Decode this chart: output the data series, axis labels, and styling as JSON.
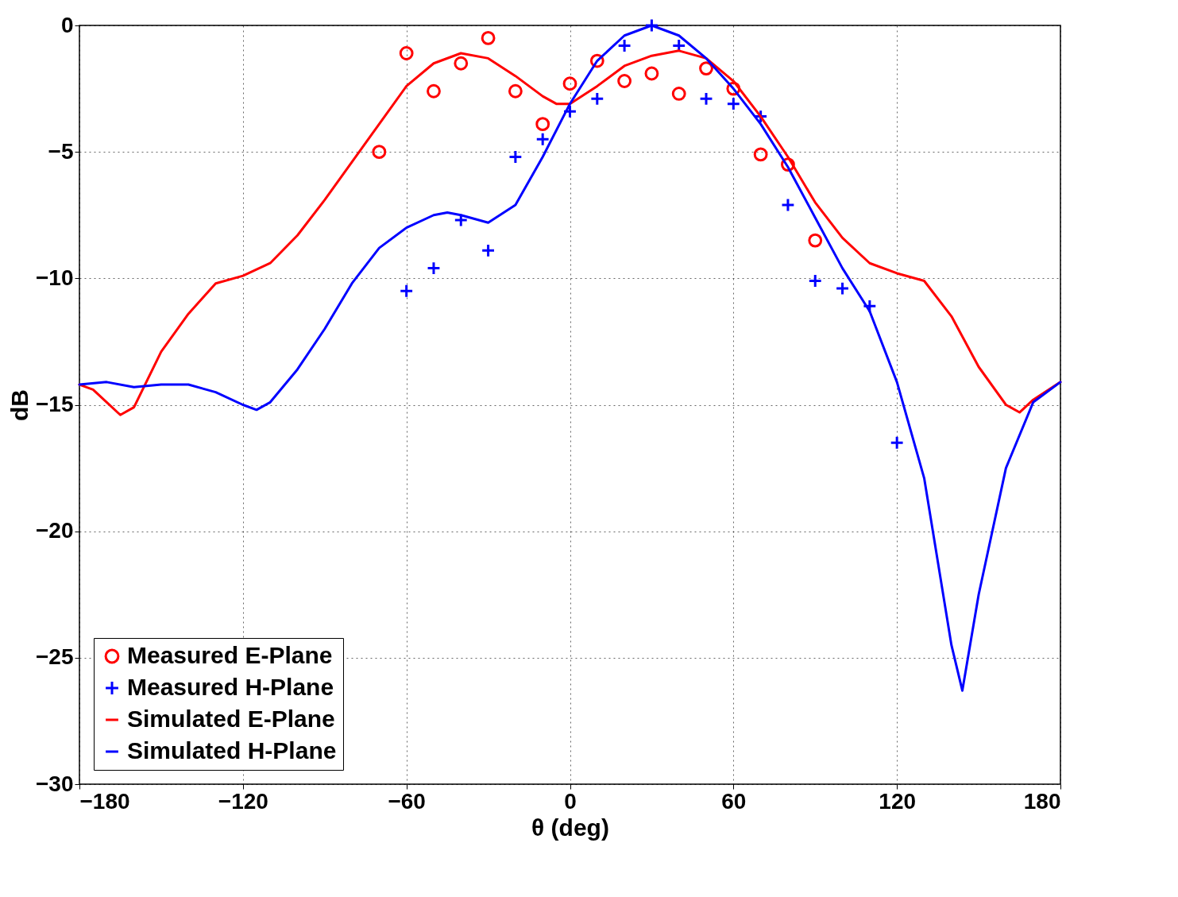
{
  "chart_data": {
    "type": "line",
    "xlabel": "θ (deg)",
    "ylabel": "dB",
    "xlim": [
      -180,
      180
    ],
    "ylim": [
      -30,
      0
    ],
    "xticks": [
      -180,
      -120,
      -60,
      0,
      60,
      120,
      180
    ],
    "yticks": [
      -30,
      -25,
      -20,
      -15,
      -10,
      -5,
      0
    ],
    "grid": true,
    "legend": "bottom left",
    "series": [
      {
        "name": "Measured E-Plane",
        "type": "scatter",
        "marker": "circle",
        "color": "#ff0000",
        "x": [
          -70,
          -60,
          -50,
          -40,
          -30,
          -20,
          -10,
          0,
          10,
          20,
          30,
          40,
          50,
          60,
          70,
          80,
          90
        ],
        "values": [
          -5.0,
          -1.1,
          -2.6,
          -1.5,
          -0.5,
          -2.6,
          -3.9,
          -2.3,
          -1.4,
          -2.2,
          -1.9,
          -2.7,
          -1.7,
          -2.5,
          -5.1,
          -5.5,
          -8.5
        ]
      },
      {
        "name": "Measured H-Plane",
        "type": "scatter",
        "marker": "cross",
        "color": "#0000ff",
        "x": [
          -60,
          -50,
          -40,
          -30,
          -20,
          -10,
          0,
          10,
          20,
          30,
          40,
          50,
          60,
          70,
          80,
          90,
          100,
          110,
          120
        ],
        "values": [
          -10.5,
          -9.6,
          -7.7,
          -8.9,
          -5.2,
          -4.5,
          -3.4,
          -2.9,
          -0.8,
          0,
          -0.8,
          -2.9,
          -3.1,
          -3.6,
          -7.1,
          -10.1,
          -10.4,
          -11.1,
          -16.5
        ]
      },
      {
        "name": "Simulated E-Plane",
        "marker": "none",
        "color": "#ff0000",
        "x": [
          -180,
          -175,
          -165,
          -160,
          -150,
          -140,
          -130,
          -120,
          -110,
          -100,
          -90,
          -80,
          -70,
          -60,
          -50,
          -40,
          -30,
          -20,
          -10,
          -5,
          0,
          10,
          20,
          30,
          40,
          50,
          60,
          70,
          80,
          90,
          100,
          110,
          120,
          130,
          140,
          150,
          160,
          165,
          170,
          180
        ],
        "values": [
          -14.2,
          -14.4,
          -15.4,
          -15.1,
          -12.9,
          -11.4,
          -10.2,
          -9.9,
          -9.4,
          -8.3,
          -6.9,
          -5.4,
          -3.9,
          -2.4,
          -1.5,
          -1.1,
          -1.3,
          -2.0,
          -2.8,
          -3.1,
          -3.1,
          -2.4,
          -1.6,
          -1.2,
          -1.0,
          -1.3,
          -2.2,
          -3.6,
          -5.2,
          -7.0,
          -8.4,
          -9.4,
          -9.8,
          -10.1,
          -11.5,
          -13.5,
          -15.0,
          -15.3,
          -14.8,
          -14.1
        ]
      },
      {
        "name": "Simulated H-Plane",
        "marker": "none",
        "color": "#0000ff",
        "x": [
          -180,
          -170,
          -160,
          -150,
          -140,
          -130,
          -120,
          -115,
          -110,
          -100,
          -90,
          -80,
          -70,
          -60,
          -50,
          -45,
          -40,
          -30,
          -20,
          -10,
          0,
          10,
          20,
          30,
          40,
          50,
          60,
          70,
          80,
          90,
          100,
          110,
          120,
          130,
          140,
          144,
          150,
          160,
          170,
          180
        ],
        "values": [
          -14.2,
          -14.1,
          -14.3,
          -14.2,
          -14.2,
          -14.5,
          -15.0,
          -15.2,
          -14.9,
          -13.6,
          -12.0,
          -10.2,
          -8.8,
          -8.0,
          -7.5,
          -7.4,
          -7.5,
          -7.8,
          -7.1,
          -5.2,
          -3.1,
          -1.4,
          -0.4,
          0,
          -0.4,
          -1.3,
          -2.5,
          -3.9,
          -5.6,
          -7.6,
          -9.6,
          -11.3,
          -14.1,
          -17.9,
          -24.5,
          -26.3,
          -22.5,
          -17.5,
          -14.9,
          -14.1
        ]
      }
    ]
  }
}
